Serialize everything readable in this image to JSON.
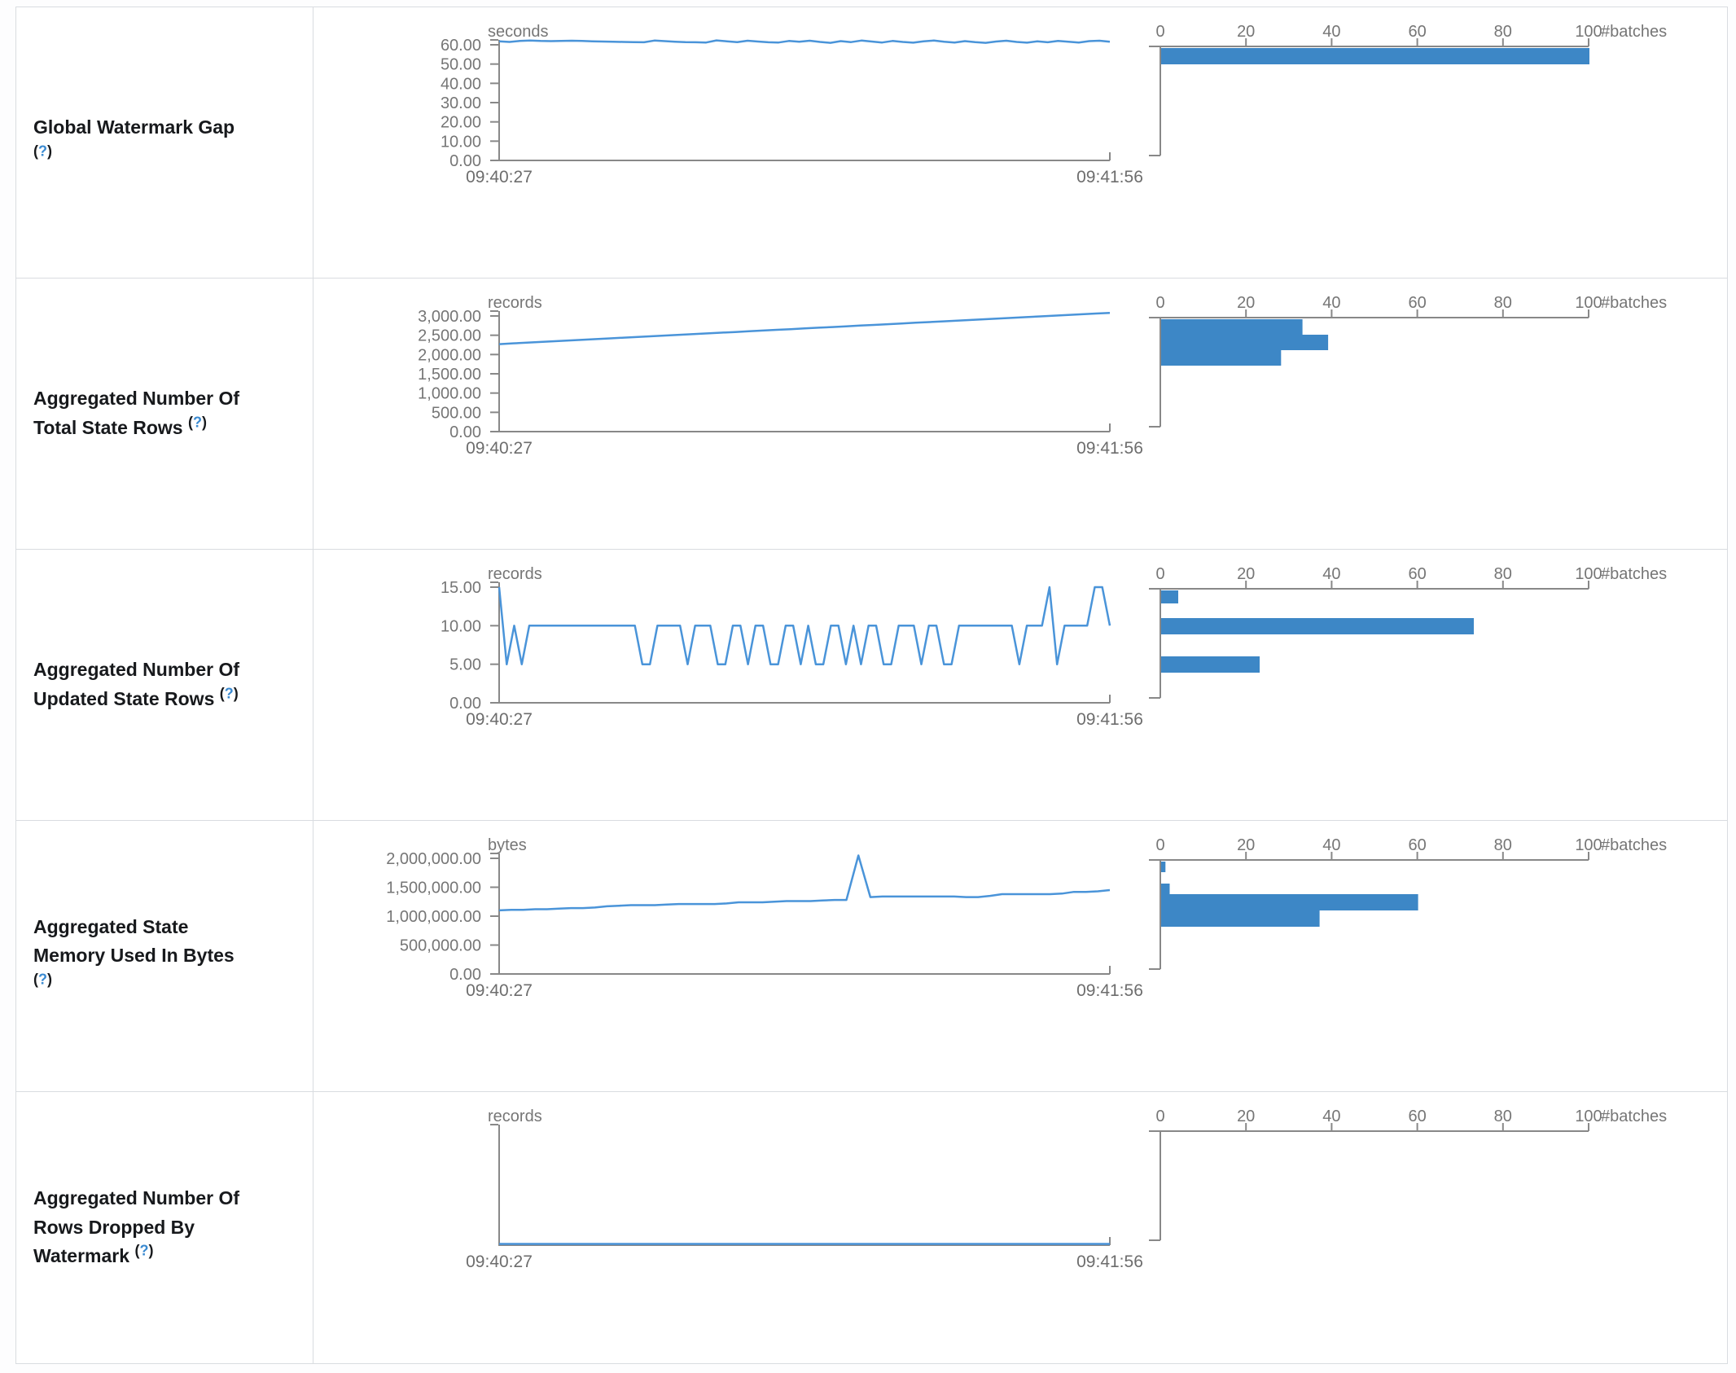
{
  "colors": {
    "bar": "#3d87c6",
    "line": "#4a94d9",
    "axis": "#888888",
    "tick_text": "#767676",
    "border": "#d9dce0",
    "label_text": "#17191c",
    "help_blue": "#3a8ad1"
  },
  "hist_axis": {
    "tick_labels": [
      "0",
      "20",
      "40",
      "60",
      "80",
      "100"
    ],
    "max": 100,
    "unit_label": "#batches"
  },
  "x_axis": {
    "start_label": "09:40:27",
    "end_label": "09:41:56"
  },
  "rows": [
    {
      "label": "Global Watermark Gap",
      "help": {
        "open": "(",
        "q": "?",
        "close": ")"
      },
      "unit": "seconds",
      "y_tick_labels": [
        "60.00",
        "50.00",
        "40.00",
        "30.00",
        "20.00",
        "10.00",
        "0.00"
      ],
      "y_top_value": 60,
      "line_values": [
        61.8,
        61.5,
        62.0,
        62.2,
        62.0,
        61.9,
        62.0,
        62.1,
        62.0,
        61.8,
        61.7,
        61.6,
        61.5,
        61.4,
        61.3,
        62.2,
        61.9,
        61.6,
        61.4,
        61.3,
        61.2,
        62.3,
        61.8,
        61.4,
        62.1,
        61.7,
        61.3,
        61.2,
        62.0,
        61.6,
        62.1,
        61.5,
        61.0,
        61.9,
        61.4,
        62.2,
        61.7,
        61.2,
        62.0,
        61.5,
        61.1,
        61.8,
        62.2,
        61.6,
        61.2,
        61.9,
        61.4,
        61.0,
        61.7,
        62.1,
        61.5,
        61.1,
        61.8,
        61.3,
        62.0,
        61.6,
        61.2,
        61.9,
        62.1,
        61.6
      ],
      "hist_bars": [
        {
          "count": 100,
          "y": 50,
          "h": 20
        }
      ]
    },
    {
      "label": "Aggregated Number Of Total State Rows",
      "help": {
        "open": "(",
        "q": "?",
        "close": ")"
      },
      "unit": "records",
      "y_tick_labels": [
        "3,000.00",
        "2,500.00",
        "2,000.00",
        "1,500.00",
        "1,000.00",
        "500.00",
        "0.00"
      ],
      "y_top_value": 3000,
      "line_values": [
        2270,
        2290,
        2308,
        2327,
        2345,
        2364,
        2382,
        2400,
        2419,
        2437,
        2456,
        2474,
        2492,
        2511,
        2529,
        2548,
        2566,
        2584,
        2603,
        2621,
        2640,
        2658,
        2676,
        2695,
        2713,
        2732,
        2750,
        2768,
        2787,
        2805,
        2824,
        2842,
        2860,
        2879,
        2897,
        2916,
        2934,
        2952,
        2971,
        2989,
        3008,
        3026,
        3044,
        3063,
        3080
      ],
      "hist_bars": [
        {
          "count": 33,
          "y": 50,
          "h": 19
        },
        {
          "count": 39,
          "y": 69,
          "h": 19
        },
        {
          "count": 28,
          "y": 88,
          "h": 19
        }
      ]
    },
    {
      "label": "Aggregated Number Of Updated State Rows",
      "help": {
        "open": "(",
        "q": "?",
        "close": ")"
      },
      "unit": "records",
      "y_tick_labels": [
        "15.00",
        "10.00",
        "5.00",
        "0.00"
      ],
      "y_top_value": 15,
      "line_values": [
        15,
        5,
        10,
        5,
        10,
        10,
        10,
        10,
        10,
        10,
        10,
        10,
        10,
        10,
        10,
        10,
        10,
        10,
        10,
        5,
        5,
        10,
        10,
        10,
        10,
        5,
        10,
        10,
        10,
        5,
        5,
        10,
        10,
        5,
        10,
        10,
        5,
        5,
        10,
        10,
        5,
        10,
        5,
        5,
        10,
        10,
        5,
        10,
        5,
        10,
        10,
        5,
        5,
        10,
        10,
        10,
        5,
        10,
        10,
        5,
        5,
        10,
        10,
        10,
        10,
        10,
        10,
        10,
        10,
        5,
        10,
        10,
        10,
        15,
        5,
        10,
        10,
        10,
        10,
        15,
        15,
        10
      ],
      "hist_bars": [
        {
          "count": 4,
          "y": 50,
          "h": 16
        },
        {
          "count": 73,
          "y": 84,
          "h": 20
        },
        {
          "count": 23,
          "y": 131,
          "h": 20
        }
      ]
    },
    {
      "label": "Aggregated State Memory Used In Bytes",
      "help": {
        "open": "(",
        "q": "?",
        "close": ")"
      },
      "unit": "bytes",
      "y_tick_labels": [
        "2,000,000.00",
        "1,500,000.00",
        "1,000,000.00",
        "500,000.00",
        "0.00"
      ],
      "y_top_value": 2000000,
      "line_values": [
        1100000,
        1110000,
        1110000,
        1120000,
        1120000,
        1130000,
        1140000,
        1140000,
        1150000,
        1170000,
        1180000,
        1190000,
        1190000,
        1190000,
        1200000,
        1210000,
        1210000,
        1210000,
        1210000,
        1220000,
        1240000,
        1240000,
        1240000,
        1250000,
        1260000,
        1260000,
        1260000,
        1270000,
        1280000,
        1280000,
        2050000,
        1330000,
        1340000,
        1340000,
        1340000,
        1340000,
        1340000,
        1340000,
        1340000,
        1330000,
        1330000,
        1350000,
        1380000,
        1380000,
        1380000,
        1380000,
        1380000,
        1390000,
        1420000,
        1420000,
        1430000,
        1450000
      ],
      "hist_bars": [
        {
          "count": 1,
          "y": 50,
          "h": 13
        },
        {
          "count": 2,
          "y": 77,
          "h": 13
        },
        {
          "count": 60,
          "y": 90,
          "h": 20
        },
        {
          "count": 37,
          "y": 110,
          "h": 20
        }
      ]
    },
    {
      "label": "Aggregated Number Of Rows Dropped By Watermark",
      "help": {
        "open": "(",
        "q": "?",
        "close": ")"
      },
      "unit": "records",
      "y_tick_labels": [],
      "y_top_value": 1,
      "line_values": [
        0,
        0,
        0,
        0,
        0,
        0,
        0,
        0,
        0,
        0
      ],
      "hist_bars": []
    }
  ],
  "chart_data": [
    {
      "type": "line",
      "title": "Global Watermark Gap",
      "ylabel": "seconds",
      "x": [
        "09:40:27",
        "09:41:56"
      ],
      "ylim": [
        0,
        60
      ],
      "series": [
        {
          "name": "watermark gap",
          "values_summary": "flat ~61.5s across window"
        }
      ],
      "histogram": {
        "xlabel": "#batches",
        "xlim": [
          0,
          100
        ],
        "bins": [
          {
            "value_level": "~60s",
            "count": 100
          }
        ]
      }
    },
    {
      "type": "line",
      "title": "Aggregated Number Of Total State Rows",
      "ylabel": "records",
      "x": [
        "09:40:27",
        "09:41:56"
      ],
      "ylim": [
        0,
        3000
      ],
      "series": [
        {
          "name": "total state rows",
          "values_summary": "linear rise 2270 -> 3080"
        }
      ],
      "histogram": {
        "xlabel": "#batches",
        "xlim": [
          0,
          100
        ],
        "bins": [
          {
            "value_level": "high",
            "count": 33
          },
          {
            "value_level": "mid",
            "count": 39
          },
          {
            "value_level": "low",
            "count": 28
          }
        ]
      }
    },
    {
      "type": "line",
      "title": "Aggregated Number Of Updated State Rows",
      "ylabel": "records",
      "x": [
        "09:40:27",
        "09:41:56"
      ],
      "ylim": [
        0,
        15
      ],
      "series": [
        {
          "name": "updated state rows",
          "values_summary": "oscillates 10<->5, starts 15, spikes 15 near end"
        }
      ],
      "histogram": {
        "xlabel": "#batches",
        "xlim": [
          0,
          100
        ],
        "bins": [
          {
            "value_level": "15",
            "count": 4
          },
          {
            "value_level": "10",
            "count": 73
          },
          {
            "value_level": "5",
            "count": 23
          }
        ]
      }
    },
    {
      "type": "line",
      "title": "Aggregated State Memory Used In Bytes",
      "ylabel": "bytes",
      "x": [
        "09:40:27",
        "09:41:56"
      ],
      "ylim": [
        0,
        2000000
      ],
      "series": [
        {
          "name": "state memory",
          "values_summary": "1.10M rising to 1.45M, single spike ~2.05M at ~58% of window"
        }
      ],
      "histogram": {
        "xlabel": "#batches",
        "xlim": [
          0,
          100
        ],
        "bins": [
          {
            "value_level": "~2.0M",
            "count": 1
          },
          {
            "value_level": "~1.6M",
            "count": 2
          },
          {
            "value_level": "~1.35M",
            "count": 60
          },
          {
            "value_level": "~1.2M",
            "count": 37
          }
        ]
      }
    },
    {
      "type": "line",
      "title": "Aggregated Number Of Rows Dropped By Watermark",
      "ylabel": "records",
      "x": [
        "09:40:27",
        "09:41:56"
      ],
      "ylim": [
        0,
        1
      ],
      "series": [
        {
          "name": "rows dropped",
          "values_summary": "constant 0"
        }
      ],
      "histogram": {
        "xlabel": "#batches",
        "xlim": [
          0,
          100
        ],
        "bins": []
      }
    }
  ]
}
